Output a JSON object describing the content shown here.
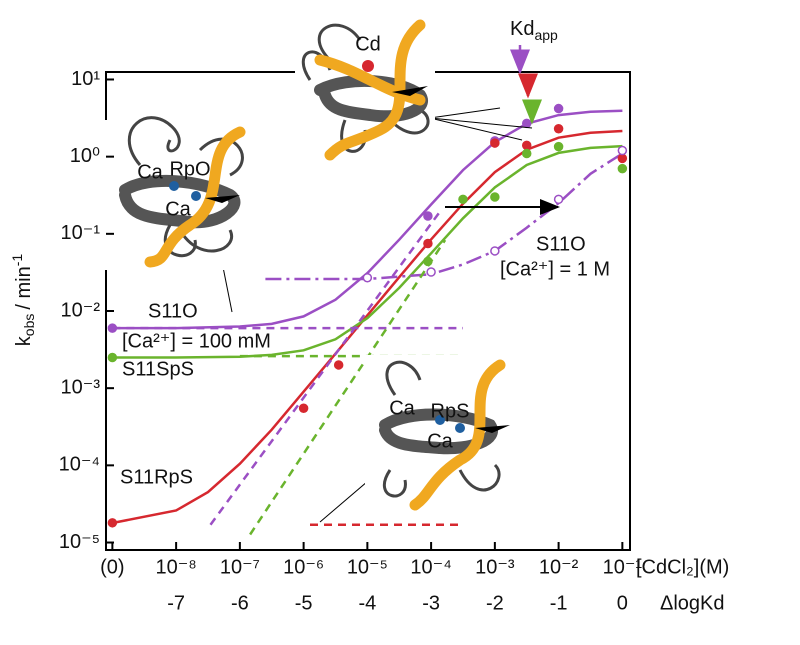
{
  "chart_data": {
    "type": "line",
    "ylog": true,
    "xlim": [
      -8.1,
      0.12
    ],
    "ylim": [
      8e-06,
      12.5
    ],
    "yticks": [
      {
        "value": 1e-05,
        "label": "10⁻⁵"
      },
      {
        "value": 0.0001,
        "label": "10⁻⁴"
      },
      {
        "value": 0.001,
        "label": "10⁻³"
      },
      {
        "value": 0.01,
        "label": "10⁻²"
      },
      {
        "value": 0.1,
        "label": "10⁻¹"
      },
      {
        "value": 1,
        "label": "10⁰"
      },
      {
        "value": 10,
        "label": "10¹"
      }
    ],
    "xticks": [
      -7,
      -6,
      -5,
      -4,
      -3,
      -2,
      -1,
      0
    ],
    "x2ticks": [
      {
        "value": -8,
        "label": "(0)"
      },
      {
        "value": -7,
        "label": "10⁻⁸"
      },
      {
        "value": -6,
        "label": "10⁻⁷"
      },
      {
        "value": -5,
        "label": "10⁻⁶"
      },
      {
        "value": -4,
        "label": "10⁻⁵"
      },
      {
        "value": -3,
        "label": "10⁻⁴"
      },
      {
        "value": -2,
        "label": "10⁻³"
      },
      {
        "value": -1,
        "label": "10⁻²"
      },
      {
        "value": 0,
        "label": "10⁻¹"
      }
    ],
    "xlabel": "ΔlogKd",
    "x2label": "[CdCl₂](M)",
    "ylabel": {
      "main": "k",
      "sub": "obs",
      "text": "/ min",
      "sup": "-1"
    },
    "series": [
      {
        "color": "#9b4fc4",
        "style": "solid",
        "x": [
          -8,
          -7,
          -6,
          -5.5,
          -5,
          -4.5,
          -4,
          -3.5,
          -3,
          -2.5,
          -2,
          -1.5,
          -1,
          -0.5,
          0
        ],
        "values": [
          0.006,
          0.006,
          0.0063,
          0.0068,
          0.0085,
          0.014,
          0.031,
          0.084,
          0.24,
          0.67,
          1.55,
          2.67,
          3.45,
          3.81,
          3.94
        ]
      },
      {
        "color": "#d6282f",
        "style": "solid",
        "x": [
          -8,
          -7,
          -6.5,
          -6,
          -5.5,
          -5,
          -4.5,
          -4,
          -3.5,
          -3,
          -2.5,
          -2,
          -1.5,
          -1,
          -0.5,
          0
        ],
        "values": [
          1.79e-05,
          2.6e-05,
          4.5e-05,
          0.000105,
          0.00029,
          0.0009,
          0.0028,
          0.0088,
          0.0274,
          0.0846,
          0.246,
          0.63,
          1.23,
          1.76,
          2.04,
          2.15
        ]
      },
      {
        "color": "#6ab42d",
        "style": "solid",
        "x": [
          -8,
          -7,
          -6,
          -5.5,
          -5,
          -4.5,
          -4,
          -3.5,
          -3,
          -2.5,
          -2,
          -1.5,
          -1,
          -0.5,
          0
        ],
        "values": [
          0.0025,
          0.0025,
          0.00256,
          0.0027,
          0.0031,
          0.0043,
          0.0081,
          0.0199,
          0.056,
          0.159,
          0.4,
          0.78,
          1.12,
          1.3,
          1.37
        ]
      },
      {
        "color": "#9b4fc4",
        "style": "dashdot",
        "x": [
          -5.6,
          -4,
          -3,
          -2.5,
          -2,
          -1.5,
          -1,
          -0.5,
          0
        ],
        "values": [
          0.026,
          0.026,
          0.03,
          0.04,
          0.06,
          0.12,
          0.25,
          0.6,
          1.1
        ]
      },
      {
        "color": "#9b4fc4",
        "style": "dashed",
        "x": [
          -8,
          -2.5
        ],
        "values": [
          0.006,
          0.006
        ]
      },
      {
        "color": "#6ab42d",
        "style": "dashed",
        "x": [
          -6,
          -2.5
        ],
        "values": [
          0.0026,
          0.0026
        ]
      },
      {
        "color": "#d6282f",
        "style": "dashed",
        "x": [
          -4.9,
          -2.5
        ],
        "values": [
          1.7e-05,
          1.7e-05
        ]
      },
      {
        "color": "#9b4fc4",
        "style": "dashed",
        "x": [
          -6.46,
          -2.85
        ],
        "values": [
          1.7e-05,
          0.2
        ]
      },
      {
        "color": "#6ab42d",
        "style": "dashed",
        "x": [
          -5.84,
          -2.78
        ],
        "values": [
          1.27e-05,
          0.083
        ]
      },
      {
        "color": "#9b4fc4",
        "style": "points",
        "x": [
          -8,
          -3.05,
          -2,
          -1.5,
          -1
        ],
        "values": [
          0.006,
          0.17,
          1.6,
          2.7,
          4.2
        ]
      },
      {
        "color": "#d6282f",
        "style": "points",
        "x": [
          -8,
          -5,
          -4.45,
          -3.05,
          -2,
          -1.5,
          -1,
          0
        ],
        "values": [
          1.8e-05,
          0.00055,
          0.002,
          0.075,
          1.5,
          1.4,
          2.3,
          0.95
        ]
      },
      {
        "color": "#6ab42d",
        "style": "points",
        "x": [
          -8,
          -3.05,
          -2.5,
          -2,
          -1.5,
          -1,
          0
        ],
        "values": [
          0.0025,
          0.044,
          0.28,
          0.3,
          1.1,
          1.35,
          0.7
        ]
      },
      {
        "color": "#9b4fc4",
        "style": "open-points",
        "x": [
          -4,
          -3,
          -2,
          -1,
          0
        ],
        "values": [
          0.027,
          0.032,
          0.06,
          0.28,
          1.2
        ]
      }
    ],
    "annotations": [
      {
        "text": "S11O",
        "color": "#9b4fc4"
      },
      {
        "text": "[Ca²⁺] = 100 mM",
        "color": "#9b4fc4"
      },
      {
        "text": "S11SpS",
        "color": "#6ab42d"
      },
      {
        "text": "S11RpS",
        "color": "#d6282f"
      },
      {
        "text": "S11O",
        "color": "#9b4fc4"
      },
      {
        "text": "[Ca²⁺] = 1 M",
        "color": "#9b4fc4"
      }
    ],
    "kd_label": {
      "main": "Kd",
      "sub": "app"
    },
    "diagram_labels": [
      {
        "text": "Ca",
        "color": "#1f5fa0"
      },
      {
        "text": "RpO",
        "color": "#1f5fa0"
      },
      {
        "text": "Ca",
        "color": "#1f5fa0"
      },
      {
        "text": "Cd",
        "color": "#d6282f"
      },
      {
        "text": "Ca",
        "color": "#1f5fa0"
      },
      {
        "text": "RpS",
        "color": "#d6282f"
      },
      {
        "text": "Ca",
        "color": "#1f5fa0"
      }
    ]
  }
}
